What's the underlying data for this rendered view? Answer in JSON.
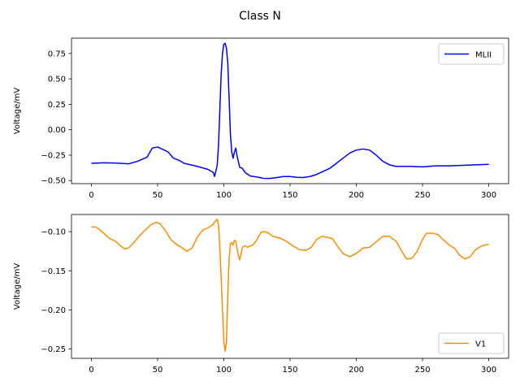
{
  "figure_title": "Class N",
  "chart_data": [
    {
      "type": "line",
      "xlabel": "",
      "ylabel": "Voltage/mV",
      "xlim": [
        -15,
        315
      ],
      "ylim": [
        -0.53,
        0.9
      ],
      "xticks": [
        0,
        50,
        100,
        150,
        200,
        250,
        300
      ],
      "yticks": [
        -0.5,
        -0.25,
        0.0,
        0.25,
        0.5,
        0.75
      ],
      "ytick_labels": [
        "−0.50",
        "−0.25",
        "0.00",
        "0.25",
        "0.50",
        "0.75"
      ],
      "legend_position": "top-right",
      "series": [
        {
          "name": "MLII",
          "color": "#0000ff",
          "points": [
            [
              0,
              -0.33
            ],
            [
              10,
              -0.325
            ],
            [
              20,
              -0.328
            ],
            [
              28,
              -0.335
            ],
            [
              35,
              -0.31
            ],
            [
              42,
              -0.27
            ],
            [
              46,
              -0.18
            ],
            [
              50,
              -0.17
            ],
            [
              55,
              -0.2
            ],
            [
              58,
              -0.22
            ],
            [
              62,
              -0.28
            ],
            [
              66,
              -0.3
            ],
            [
              70,
              -0.33
            ],
            [
              80,
              -0.36
            ],
            [
              88,
              -0.39
            ],
            [
              92,
              -0.42
            ],
            [
              93,
              -0.46
            ],
            [
              95,
              -0.35
            ],
            [
              96,
              -0.15
            ],
            [
              97,
              0.2
            ],
            [
              98,
              0.55
            ],
            [
              99,
              0.75
            ],
            [
              100,
              0.84
            ],
            [
              101,
              0.85
            ],
            [
              102,
              0.8
            ],
            [
              103,
              0.65
            ],
            [
              104,
              0.3
            ],
            [
              105,
              -0.05
            ],
            [
              106,
              -0.22
            ],
            [
              107,
              -0.28
            ],
            [
              108,
              -0.22
            ],
            [
              109,
              -0.18
            ],
            [
              110,
              -0.26
            ],
            [
              112,
              -0.37
            ],
            [
              114,
              -0.38
            ],
            [
              116,
              -0.42
            ],
            [
              120,
              -0.455
            ],
            [
              125,
              -0.465
            ],
            [
              130,
              -0.478
            ],
            [
              135,
              -0.479
            ],
            [
              140,
              -0.47
            ],
            [
              145,
              -0.46
            ],
            [
              150,
              -0.46
            ],
            [
              155,
              -0.468
            ],
            [
              160,
              -0.47
            ],
            [
              165,
              -0.46
            ],
            [
              170,
              -0.44
            ],
            [
              175,
              -0.41
            ],
            [
              180,
              -0.38
            ],
            [
              185,
              -0.33
            ],
            [
              190,
              -0.28
            ],
            [
              195,
              -0.23
            ],
            [
              200,
              -0.2
            ],
            [
              205,
              -0.19
            ],
            [
              210,
              -0.2
            ],
            [
              215,
              -0.25
            ],
            [
              220,
              -0.31
            ],
            [
              225,
              -0.345
            ],
            [
              230,
              -0.36
            ],
            [
              240,
              -0.36
            ],
            [
              250,
              -0.365
            ],
            [
              260,
              -0.355
            ],
            [
              270,
              -0.355
            ],
            [
              280,
              -0.35
            ],
            [
              290,
              -0.345
            ],
            [
              300,
              -0.34
            ]
          ]
        }
      ]
    },
    {
      "type": "line",
      "xlabel": "",
      "ylabel": "Voltage/mV",
      "xlim": [
        -15,
        315
      ],
      "ylim": [
        -0.262,
        -0.078
      ],
      "xticks": [
        0,
        50,
        100,
        150,
        200,
        250,
        300
      ],
      "yticks": [
        -0.25,
        -0.2,
        -0.15,
        -0.1
      ],
      "ytick_labels": [
        "−0.25",
        "−0.20",
        "−0.15",
        "−0.10"
      ],
      "legend_position": "bottom-right",
      "series": [
        {
          "name": "V1",
          "color": "#ff8c00",
          "points": [
            [
              0,
              -0.094
            ],
            [
              3,
              -0.094
            ],
            [
              6,
              -0.097
            ],
            [
              10,
              -0.103
            ],
            [
              14,
              -0.109
            ],
            [
              18,
              -0.112
            ],
            [
              22,
              -0.118
            ],
            [
              25,
              -0.122
            ],
            [
              28,
              -0.121
            ],
            [
              32,
              -0.114
            ],
            [
              36,
              -0.106
            ],
            [
              40,
              -0.099
            ],
            [
              45,
              -0.091
            ],
            [
              49,
              -0.088
            ],
            [
              52,
              -0.09
            ],
            [
              56,
              -0.099
            ],
            [
              60,
              -0.11
            ],
            [
              64,
              -0.116
            ],
            [
              68,
              -0.12
            ],
            [
              72,
              -0.125
            ],
            [
              76,
              -0.121
            ],
            [
              80,
              -0.107
            ],
            [
              84,
              -0.098
            ],
            [
              88,
              -0.095
            ],
            [
              91,
              -0.092
            ],
            [
              93,
              -0.088
            ],
            [
              95,
              -0.084
            ],
            [
              96,
              -0.092
            ],
            [
              97,
              -0.12
            ],
            [
              98,
              -0.16
            ],
            [
              99,
              -0.2
            ],
            [
              100,
              -0.24
            ],
            [
              101,
              -0.253
            ],
            [
              102,
              -0.24
            ],
            [
              103,
              -0.18
            ],
            [
              104,
              -0.135
            ],
            [
              105,
              -0.115
            ],
            [
              106,
              -0.114
            ],
            [
              107,
              -0.117
            ],
            [
              108,
              -0.111
            ],
            [
              109,
              -0.112
            ],
            [
              110,
              -0.122
            ],
            [
              111,
              -0.13
            ],
            [
              112,
              -0.136
            ],
            [
              114,
              -0.12
            ],
            [
              116,
              -0.118
            ],
            [
              118,
              -0.12
            ],
            [
              120,
              -0.118
            ],
            [
              122,
              -0.117
            ],
            [
              125,
              -0.11
            ],
            [
              128,
              -0.101
            ],
            [
              130,
              -0.1
            ],
            [
              133,
              -0.101
            ],
            [
              137,
              -0.106
            ],
            [
              142,
              -0.108
            ],
            [
              147,
              -0.112
            ],
            [
              152,
              -0.118
            ],
            [
              157,
              -0.123
            ],
            [
              162,
              -0.124
            ],
            [
              166,
              -0.12
            ],
            [
              170,
              -0.11
            ],
            [
              174,
              -0.106
            ],
            [
              178,
              -0.107
            ],
            [
              182,
              -0.109
            ],
            [
              186,
              -0.119
            ],
            [
              190,
              -0.128
            ],
            [
              195,
              -0.132
            ],
            [
              200,
              -0.128
            ],
            [
              205,
              -0.121
            ],
            [
              210,
              -0.12
            ],
            [
              215,
              -0.113
            ],
            [
              220,
              -0.106
            ],
            [
              225,
              -0.106
            ],
            [
              230,
              -0.112
            ],
            [
              235,
              -0.127
            ],
            [
              238,
              -0.135
            ],
            [
              242,
              -0.134
            ],
            [
              246,
              -0.125
            ],
            [
              250,
              -0.11
            ],
            [
              253,
              -0.102
            ],
            [
              258,
              -0.102
            ],
            [
              262,
              -0.104
            ],
            [
              266,
              -0.111
            ],
            [
              270,
              -0.117
            ],
            [
              274,
              -0.121
            ],
            [
              278,
              -0.13
            ],
            [
              282,
              -0.135
            ],
            [
              286,
              -0.132
            ],
            [
              290,
              -0.123
            ],
            [
              295,
              -0.118
            ],
            [
              300,
              -0.116
            ]
          ]
        }
      ]
    }
  ]
}
